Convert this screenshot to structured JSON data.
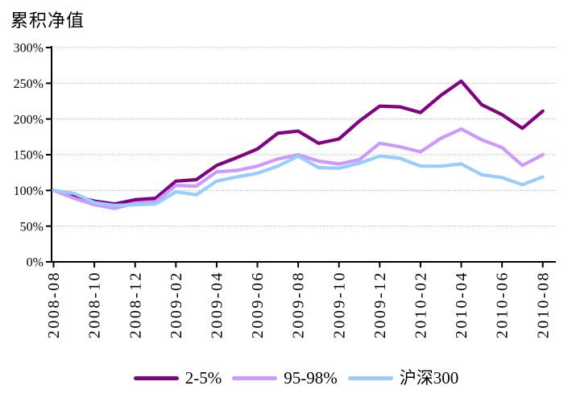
{
  "chart_data": {
    "type": "line",
    "title": "累积净值",
    "xlabel": "",
    "ylabel": "",
    "ylim": [
      0,
      300
    ],
    "ytick_step": 50,
    "y_tick_labels": [
      "0%",
      "50%",
      "100%",
      "150%",
      "200%",
      "250%",
      "300%"
    ],
    "grid": "horizontal-dotted",
    "legend_position": "bottom",
    "x": [
      "2008-08",
      "2008-09",
      "2008-10",
      "2008-11",
      "2008-12",
      "2009-01",
      "2009-02",
      "2009-03",
      "2009-04",
      "2009-05",
      "2009-06",
      "2009-07",
      "2009-08",
      "2009-09",
      "2009-10",
      "2009-11",
      "2009-12",
      "2010-01",
      "2010-02",
      "2010-03",
      "2010-04",
      "2010-05",
      "2010-06",
      "2010-07",
      "2010-08"
    ],
    "x_tick_labels": [
      "2008-08",
      "2008-10",
      "2008-12",
      "2009-02",
      "2009-04",
      "2009-06",
      "2009-08",
      "2009-10",
      "2009-12",
      "2010-02",
      "2010-04",
      "2010-06",
      "2010-08"
    ],
    "series": [
      {
        "name": "2-5%",
        "color": "#800080",
        "values": [
          100,
          92,
          85,
          81,
          87,
          89,
          113,
          115,
          135,
          146,
          158,
          180,
          183,
          166,
          172,
          197,
          218,
          217,
          209,
          233,
          253,
          220,
          206,
          187,
          211
        ]
      },
      {
        "name": "95-98%",
        "color": "#CC99FF",
        "values": [
          100,
          89,
          80,
          75,
          82,
          84,
          107,
          106,
          126,
          128,
          134,
          144,
          150,
          141,
          137,
          143,
          166,
          161,
          154,
          173,
          186,
          171,
          160,
          135,
          150
        ]
      },
      {
        "name": "沪深300",
        "color": "#99CCFF",
        "values": [
          100,
          96,
          83,
          79,
          80,
          81,
          98,
          94,
          113,
          119,
          124,
          134,
          148,
          132,
          131,
          138,
          148,
          145,
          134,
          134,
          137,
          122,
          118,
          108,
          119
        ]
      }
    ]
  }
}
